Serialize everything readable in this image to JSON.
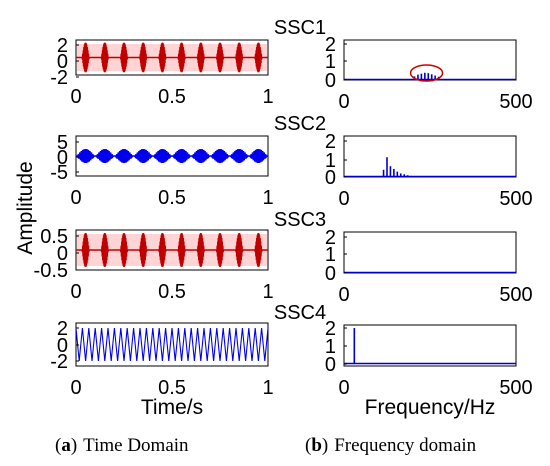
{
  "chart_data": [
    {
      "id": "a1",
      "type": "line",
      "x": [
        0,
        1
      ],
      "xlim": [
        0,
        1
      ],
      "xticks": [
        "0",
        "0.5",
        "1"
      ],
      "ylim": [
        -2,
        2
      ],
      "yticks": [
        "2",
        "0",
        "-2"
      ],
      "colors": [
        "#c00000",
        "#ffb0b0"
      ],
      "bursts": 10
    },
    {
      "id": "b1",
      "type": "line",
      "title": "SSC1",
      "x": [
        0,
        500
      ],
      "xlim": [
        0,
        500
      ],
      "xticks": [
        "0",
        "500"
      ],
      "ylim": [
        0,
        2
      ],
      "yticks": [
        "2",
        "1",
        "0"
      ],
      "peaks": {
        "freq": [
          205,
          215,
          225,
          235,
          245,
          255,
          265,
          275
        ],
        "amp": [
          0.2,
          0.3,
          0.35,
          0.4,
          0.38,
          0.32,
          0.25,
          0.18
        ]
      },
      "annotation": "ellipse",
      "colors": [
        "#0000cc",
        "#cc0000"
      ]
    },
    {
      "id": "a2",
      "type": "line",
      "x": [
        0,
        1
      ],
      "xlim": [
        0,
        1
      ],
      "xticks": [
        "0",
        "0.5",
        "1"
      ],
      "ylim": [
        -5,
        5
      ],
      "yticks": [
        "5",
        "0",
        "-5"
      ],
      "colors": [
        "#0000ee"
      ],
      "bursts": 10
    },
    {
      "id": "b2",
      "type": "line",
      "title": "SSC2",
      "x": [
        0,
        500
      ],
      "xlim": [
        0,
        500
      ],
      "xticks": [
        "0",
        "500"
      ],
      "ylim": [
        0,
        2
      ],
      "yticks": [
        "2",
        "1",
        "0"
      ],
      "peaks": {
        "freq": [
          115,
          125,
          135,
          145,
          155,
          165,
          175,
          185,
          195
        ],
        "amp": [
          0.4,
          1.1,
          0.6,
          0.45,
          0.3,
          0.2,
          0.15,
          0.1,
          0.06
        ]
      },
      "colors": [
        "#0000cc"
      ]
    },
    {
      "id": "a3",
      "type": "line",
      "x": [
        0,
        1
      ],
      "xlim": [
        0,
        1
      ],
      "xticks": [
        "0",
        "0.5",
        "1"
      ],
      "ylim": [
        -0.5,
        0.5
      ],
      "yticks": [
        "0.5",
        "0",
        "-0.5"
      ],
      "colors": [
        "#c00000",
        "#ffb0b0"
      ],
      "bursts": 10
    },
    {
      "id": "b3",
      "type": "line",
      "title": "SSC3",
      "x": [
        0,
        500
      ],
      "xlim": [
        0,
        500
      ],
      "xticks": [
        "0",
        "500"
      ],
      "ylim": [
        0,
        2
      ],
      "yticks": [
        "2",
        "1",
        "0"
      ],
      "peaks": {
        "freq": [
          60,
          70
        ],
        "amp": [
          0.05,
          0.06
        ]
      },
      "colors": [
        "#0000cc"
      ]
    },
    {
      "id": "a4",
      "type": "line",
      "x": [
        0,
        1
      ],
      "xlim": [
        0,
        1
      ],
      "xticks": [
        "0",
        "0.5",
        "1"
      ],
      "ylim": [
        -2,
        2
      ],
      "yticks": [
        "2",
        "0",
        "-2"
      ],
      "cycles": 30,
      "colors": [
        "#0000ee"
      ]
    },
    {
      "id": "b4",
      "type": "line",
      "title": "SSC4",
      "x": [
        0,
        500
      ],
      "xlim": [
        0,
        500
      ],
      "xticks": [
        "0",
        "500"
      ],
      "ylim": [
        0,
        2
      ],
      "yticks": [
        "2",
        "1",
        "0"
      ],
      "peaks": {
        "freq": [
          30
        ],
        "amp": [
          2.0
        ]
      },
      "colors": [
        "#0000cc"
      ]
    }
  ],
  "labels": {
    "ylabel": "Amplitude",
    "xlabel_time": "Time/s",
    "xlabel_freq": "Frequency/Hz"
  },
  "captions": {
    "a_tag": "(",
    "a_letter": "a",
    "a_close": ")",
    "a_text": "Time Domain",
    "b_tag": "(",
    "b_letter": "b",
    "b_close": ")",
    "b_text": "Frequency domain"
  }
}
